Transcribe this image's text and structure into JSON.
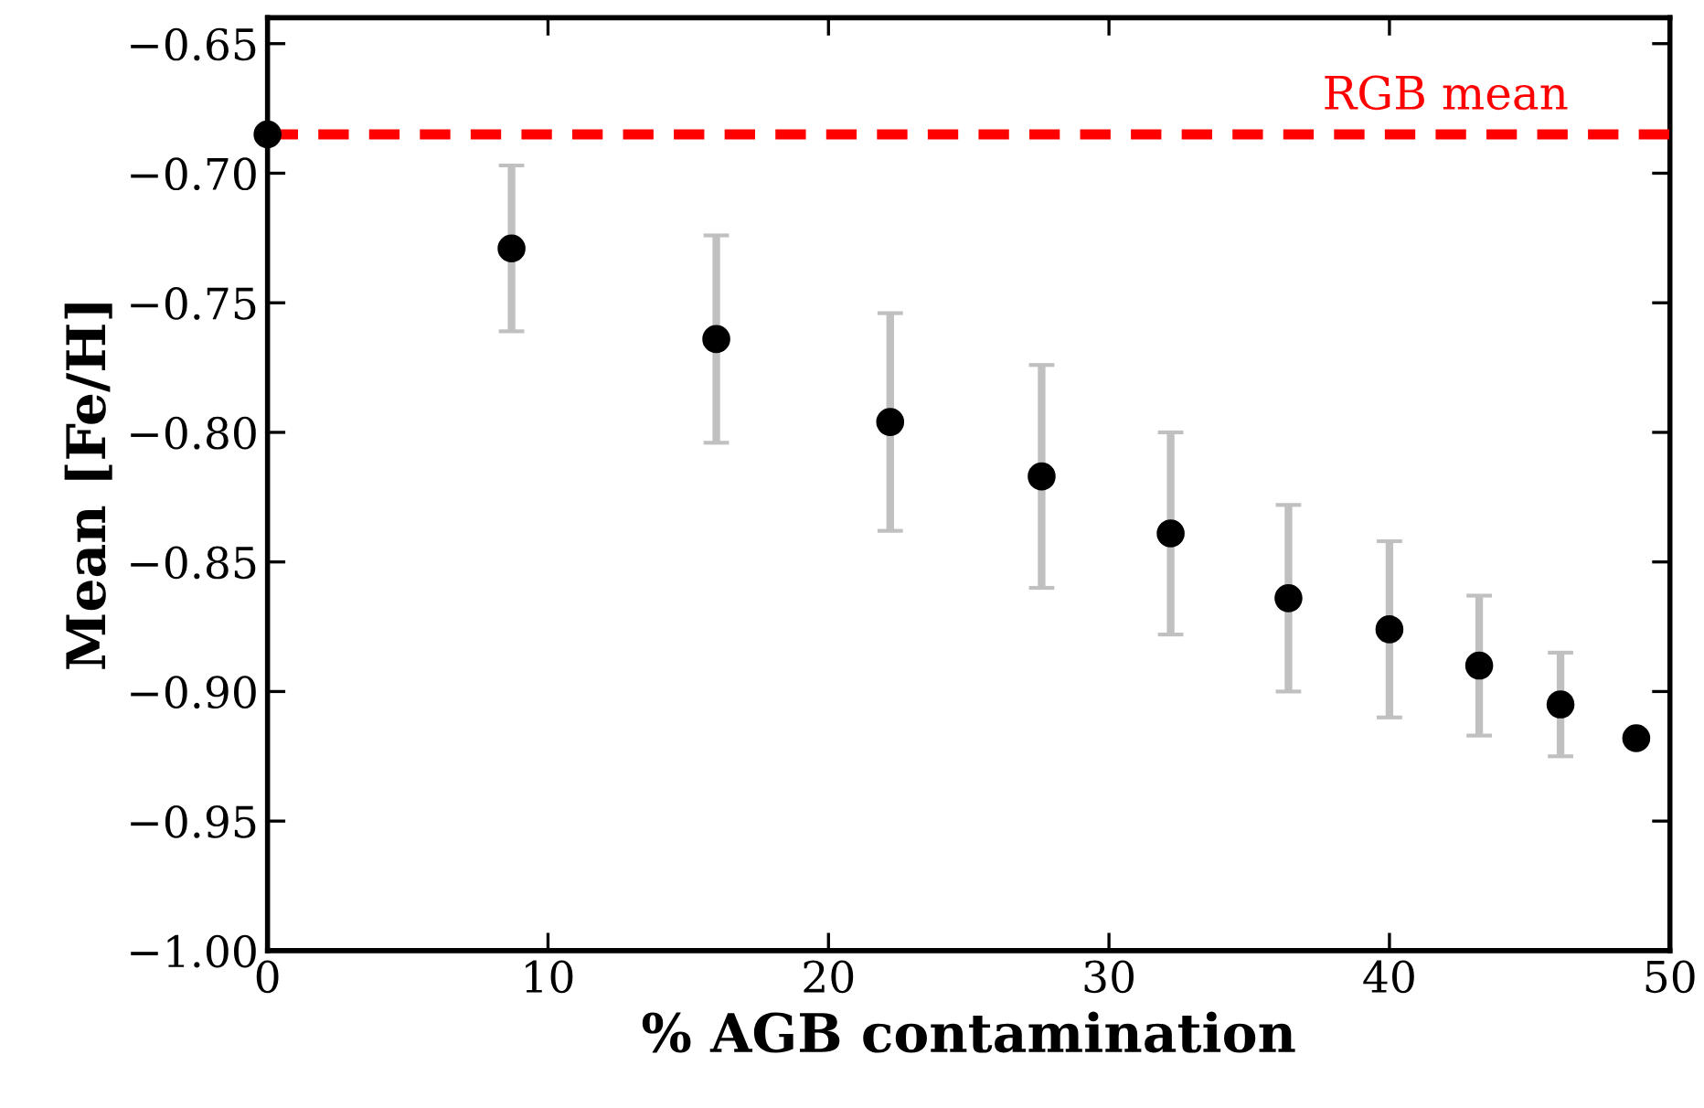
{
  "chart_data": {
    "type": "scatter",
    "xlabel": "% AGB contamination",
    "ylabel": "Mean [Fe/H]",
    "x": [
      0,
      8.7,
      16.0,
      22.2,
      27.6,
      32.2,
      36.4,
      40.0,
      43.2,
      46.1,
      48.8
    ],
    "series": [
      {
        "color": "#000000",
        "values": [
          -0.685,
          -0.729,
          -0.764,
          -0.796,
          -0.817,
          -0.839,
          -0.864,
          -0.876,
          -0.89,
          -0.905,
          -0.918
        ],
        "errors": [
          null,
          0.032,
          0.04,
          0.042,
          0.043,
          0.039,
          0.036,
          0.034,
          0.027,
          0.02,
          null
        ]
      }
    ],
    "marker": "circle",
    "ref_lines": [
      {
        "axis": "y",
        "value": -0.685,
        "label": "RGB mean",
        "color": "#ff0000",
        "line_style": "dashed"
      }
    ],
    "xlim": [
      0,
      50
    ],
    "xticks": [
      0,
      10,
      20,
      30,
      40,
      50
    ],
    "ylim": [
      -1.0,
      -0.64
    ],
    "yticks": [
      {
        "value": -1.0,
        "label": "−1.00"
      },
      {
        "value": -0.95,
        "label": "−0.95"
      },
      {
        "value": -0.9,
        "label": "−0.90"
      },
      {
        "value": -0.85,
        "label": "−0.85"
      },
      {
        "value": -0.8,
        "label": "−0.80"
      },
      {
        "value": -0.75,
        "label": "−0.75"
      },
      {
        "value": -0.7,
        "label": "−0.70"
      },
      {
        "value": -0.65,
        "label": "−0.65"
      }
    ],
    "grid": false
  }
}
